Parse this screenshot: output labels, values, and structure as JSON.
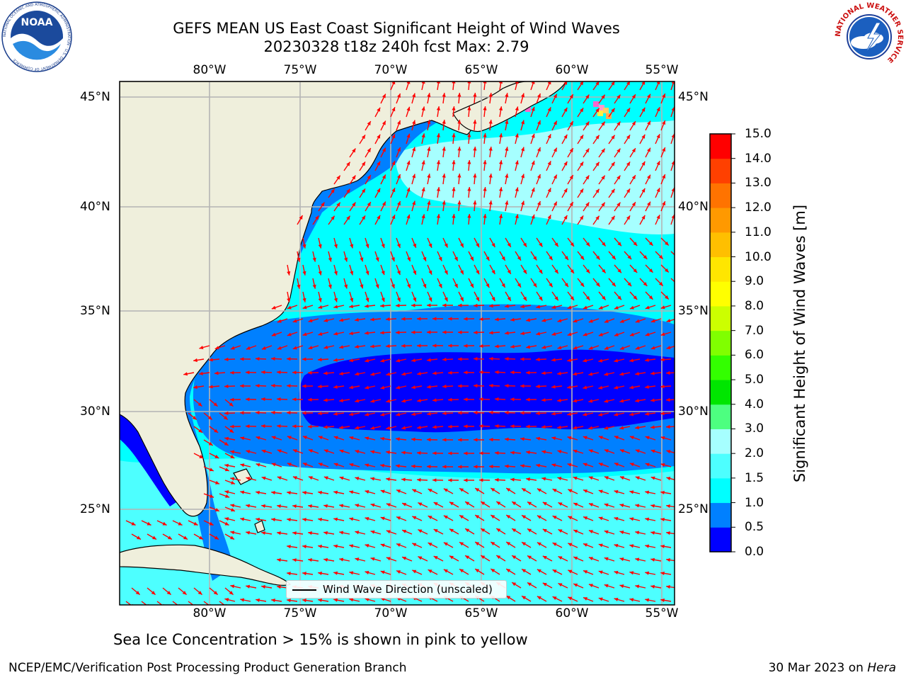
{
  "title": {
    "line1": "GEFS MEAN US East Coast Significant Height of Wind Waves",
    "line2": "20230328 t18z 240h fcst   Max: 2.79"
  },
  "map": {
    "lon_ticks": [
      "80°W",
      "75°W",
      "70°W",
      "65°W",
      "60°W",
      "55°W"
    ],
    "lat_ticks": [
      "45°N",
      "40°N",
      "35°N",
      "30°N",
      "25°N"
    ],
    "colors": {
      "land": "#efefdc",
      "coast": "#000000",
      "grid": "#b4b4b4",
      "arrow": "#ff0000",
      "sea_ice": "#ff66cc"
    },
    "legend_label": "Wind Wave Direction (unscaled)"
  },
  "colorbar": {
    "title": "Significant Height of Wind Waves [m]",
    "ticks": [
      "0.0",
      "0.5",
      "1.0",
      "1.5",
      "2.0",
      "3.0",
      "4.0",
      "5.0",
      "6.0",
      "7.0",
      "8.0",
      "9.0",
      "10.0",
      "11.0",
      "12.0",
      "13.0",
      "14.0",
      "15.0"
    ],
    "colors": [
      "#0000ff",
      "#0080ff",
      "#00ffff",
      "#4dffff",
      "#a6ffff",
      "#4dff80",
      "#00e600",
      "#33ff00",
      "#80ff00",
      "#ccff00",
      "#ffff00",
      "#ffe600",
      "#ffbf00",
      "#ff9900",
      "#ff7300",
      "#ff4000",
      "#ff0000"
    ]
  },
  "notes": {
    "sea_ice": "Sea Ice Concentration > 15% is shown in pink to yellow",
    "footer_left": "NCEP/EMC/Verification Post Processing Product Generation Branch",
    "footer_date": "30 Mar 2023 on",
    "footer_machine": "Hera"
  },
  "logos": {
    "noaa_text": "NOAA",
    "noaa_ring_text": "NATIONAL OCEANIC AND ATMOSPHERIC ADMINISTRATION · U.S. DEPARTMENT OF COMMERCE",
    "nws_ring_text": "NATIONAL WEATHER SERVICE"
  }
}
